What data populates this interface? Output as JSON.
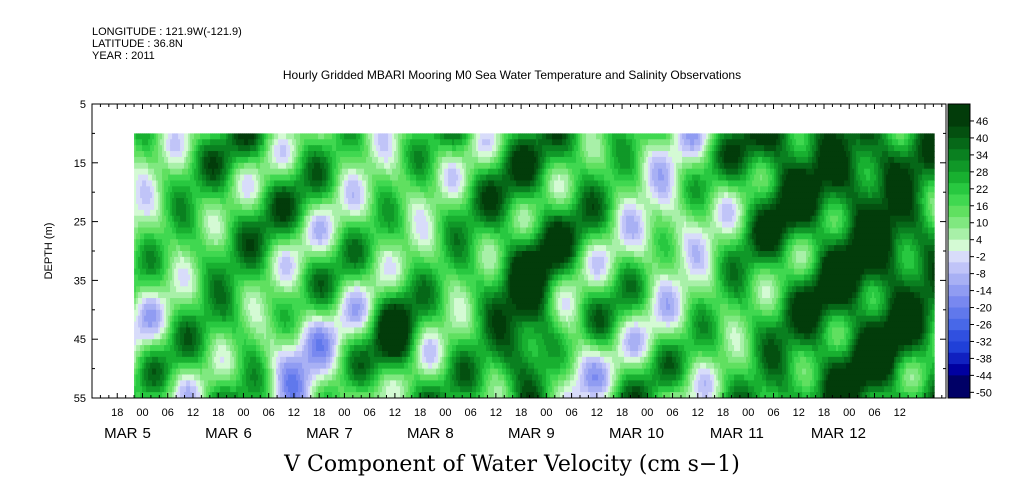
{
  "header": {
    "longitude": "LONGITUDE : 121.9W(-121.9)",
    "latitude": "LATITUDE : 36.8N",
    "year": "YEAR : 2011"
  },
  "chart_data": {
    "type": "heatmap",
    "title": "Hourly Gridded MBARI Mooring M0 Sea Water Temperature and Salinity Observations",
    "variable_title": "V Component of Water Velocity (cm s−1)",
    "ylabel": "DEPTH (m)",
    "ylim": [
      5,
      55
    ],
    "y_inverted": true,
    "y_ticks": [
      5,
      15,
      25,
      35,
      45,
      55
    ],
    "x_hour_ticks": [
      "18",
      "00",
      "06",
      "12",
      "18",
      "00",
      "06",
      "12",
      "18",
      "00",
      "06",
      "12",
      "18",
      "00",
      "06",
      "12",
      "18",
      "00",
      "06",
      "12",
      "18",
      "00",
      "06",
      "12",
      "18",
      "00",
      "06",
      "12",
      "18",
      "00",
      "06",
      "12"
    ],
    "x_date_ticks": [
      {
        "month": "MAR",
        "day": "5"
      },
      {
        "month": "MAR",
        "day": "6"
      },
      {
        "month": "MAR",
        "day": "7"
      },
      {
        "month": "MAR",
        "day": "8"
      },
      {
        "month": "MAR",
        "day": "9"
      },
      {
        "month": "MAR",
        "day": "10"
      },
      {
        "month": "MAR",
        "day": "11"
      },
      {
        "month": "MAR",
        "day": "12"
      }
    ],
    "x_range": [
      "2011-03-04 12:00",
      "2011-03-12 23:00"
    ],
    "data_x_range": [
      "2011-03-04 22:00",
      "2011-03-12 20:00"
    ],
    "data_depth_range": [
      10,
      55
    ],
    "colorbar": {
      "labels": [
        "46",
        "40",
        "34",
        "28",
        "22",
        "16",
        "10",
        "4",
        "-2",
        "-8",
        "-14",
        "-20",
        "-26",
        "-32",
        "-38",
        "-44",
        "-50"
      ],
      "min": -50,
      "max": 52,
      "step": 3,
      "colors_low_to_high": [
        "#000066",
        "#0000a0",
        "#1020c0",
        "#2040d8",
        "#3050e0",
        "#4868e8",
        "#6078ec",
        "#7888f0",
        "#909cf2",
        "#a8b0f4",
        "#c0c4f8",
        "#d8dcfa",
        "#d4fad4",
        "#a8f0a8",
        "#80e880",
        "#60e060",
        "#40d850",
        "#28c840",
        "#18b030",
        "#109828",
        "#0a8020",
        "#066818",
        "#045010",
        "#023c0a"
      ],
      "below_color": "#000066",
      "above_color": "#023c0a"
    },
    "field_description": "Alternating bands of negative (blue) and positive (green) V velocity mostly between -26 and +22 cm/s, tilted with depth, strongest negative near Mar 6 12h and Mar 8 18h at depth, strong positive near Mar 7 12h deep, Mar 9 06h and Mar 11-12 throughout."
  }
}
